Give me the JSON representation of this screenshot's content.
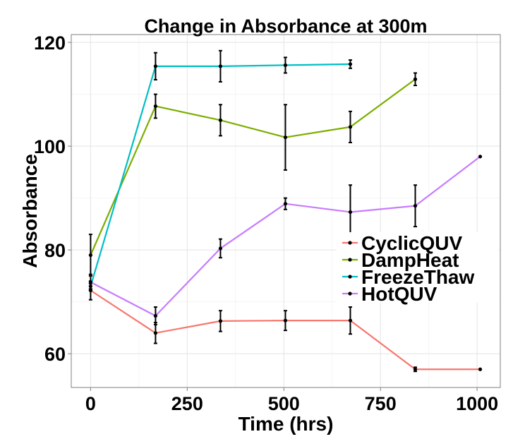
{
  "chart_data": {
    "type": "line",
    "title": "Change in Absorbance at 300m",
    "xlabel": "Time (hrs)",
    "ylabel": "Absorbance",
    "xlim": [
      -50,
      1060
    ],
    "ylim": [
      53.5,
      121.5
    ],
    "xticks": [
      0,
      250,
      500,
      750,
      1000
    ],
    "yticks": [
      60,
      80,
      100,
      120
    ],
    "xtick_labels": [
      "0",
      "250",
      "500",
      "750",
      "1000"
    ],
    "ytick_labels": [
      "60",
      "80",
      "100",
      "120"
    ],
    "grid": true,
    "legend_position": "right",
    "series": [
      {
        "name": "CyclicQUV",
        "color": "#F8766D",
        "points": [
          {
            "x": 0,
            "y": 72.2,
            "err": 1.8
          },
          {
            "x": 168,
            "y": 64.0,
            "err": 2.0
          },
          {
            "x": 336,
            "y": 66.3,
            "err": 2.0
          },
          {
            "x": 504,
            "y": 66.4,
            "err": 1.9
          },
          {
            "x": 672,
            "y": 66.4,
            "err": 2.6
          },
          {
            "x": 840,
            "y": 57.0,
            "err": 0.4
          },
          {
            "x": 1008,
            "y": 57.0,
            "err": 0
          }
        ]
      },
      {
        "name": "DampHeat",
        "color": "#7CAE00",
        "points": [
          {
            "x": 0,
            "y": 79.0,
            "err": 4.0
          },
          {
            "x": 168,
            "y": 107.7,
            "err": 2.3
          },
          {
            "x": 336,
            "y": 105.0,
            "err": 3.0
          },
          {
            "x": 504,
            "y": 101.7,
            "err": 6.3
          },
          {
            "x": 672,
            "y": 103.7,
            "err": 3.0
          },
          {
            "x": 840,
            "y": 112.9,
            "err": 1.2
          }
        ]
      },
      {
        "name": "FreezeThaw",
        "color": "#00BFC4",
        "points": [
          {
            "x": 0,
            "y": 73.0,
            "err": 0.5
          },
          {
            "x": 168,
            "y": 115.4,
            "err": 2.6
          },
          {
            "x": 336,
            "y": 115.4,
            "err": 3.0
          },
          {
            "x": 504,
            "y": 115.6,
            "err": 1.5
          },
          {
            "x": 672,
            "y": 115.8,
            "err": 0.8
          }
        ]
      },
      {
        "name": "HotQUV",
        "color": "#C77CFF",
        "points": [
          {
            "x": 0,
            "y": 73.8,
            "err": 1.5
          },
          {
            "x": 168,
            "y": 67.3,
            "err": 1.7
          },
          {
            "x": 336,
            "y": 80.3,
            "err": 1.8
          },
          {
            "x": 504,
            "y": 88.9,
            "err": 1.1
          },
          {
            "x": 672,
            "y": 87.3,
            "err": 5.2
          },
          {
            "x": 840,
            "y": 88.5,
            "err": 4.0
          },
          {
            "x": 1008,
            "y": 98.0,
            "err": 0
          }
        ]
      }
    ]
  }
}
